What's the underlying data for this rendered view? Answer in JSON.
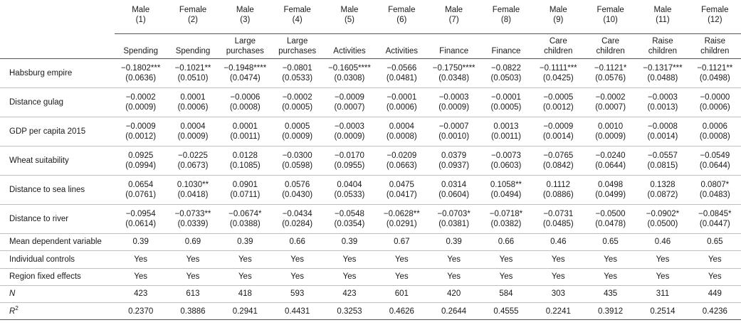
{
  "columns": [
    {
      "sex": "Male",
      "num": "(1)",
      "outcome": [
        "Spending"
      ]
    },
    {
      "sex": "Female",
      "num": "(2)",
      "outcome": [
        "Spending"
      ]
    },
    {
      "sex": "Male",
      "num": "(3)",
      "outcome": [
        "Large",
        "purchases"
      ]
    },
    {
      "sex": "Female",
      "num": "(4)",
      "outcome": [
        "Large",
        "purchases"
      ]
    },
    {
      "sex": "Male",
      "num": "(5)",
      "outcome": [
        "Activities"
      ]
    },
    {
      "sex": "Female",
      "num": "(6)",
      "outcome": [
        "Activities"
      ]
    },
    {
      "sex": "Male",
      "num": "(7)",
      "outcome": [
        "Finance"
      ]
    },
    {
      "sex": "Female",
      "num": "(8)",
      "outcome": [
        "Finance"
      ]
    },
    {
      "sex": "Male",
      "num": "(9)",
      "outcome": [
        "Care",
        "children"
      ]
    },
    {
      "sex": "Female",
      "num": "(10)",
      "outcome": [
        "Care",
        "children"
      ]
    },
    {
      "sex": "Male",
      "num": "(11)",
      "outcome": [
        "Raise",
        "children"
      ]
    },
    {
      "sex": "Female",
      "num": "(12)",
      "outcome": [
        "Raise",
        "children"
      ]
    }
  ],
  "coef_rows": [
    {
      "label": "Habsburg empire",
      "coef": [
        "−0.1802***",
        "−0.1021**",
        "−0.1948****",
        "−0.0801",
        "−0.1605****",
        "−0.0566",
        "−0.1750****",
        "−0.0822",
        "−0.1111***",
        "−0.1121*",
        "−0.1317***",
        "−0.1121**"
      ],
      "se": [
        "(0.0636)",
        "(0.0510)",
        "(0.0474)",
        "(0.0533)",
        "(0.0308)",
        "(0.0481)",
        "(0.0348)",
        "(0.0503)",
        "(0.0425)",
        "(0.0576)",
        "(0.0488)",
        "(0.0498)"
      ]
    },
    {
      "label": "Distance gulag",
      "coef": [
        "−0.0002",
        "0.0001",
        "−0.0006",
        "−0.0002",
        "−0.0009",
        "−0.0001",
        "−0.0003",
        "−0.0001",
        "−0.0005",
        "−0.0002",
        "−0.0003",
        "−0.0000"
      ],
      "se": [
        "(0.0009)",
        "(0.0006)",
        "(0.0008)",
        "(0.0005)",
        "(0.0007)",
        "(0.0006)",
        "(0.0009)",
        "(0.0005)",
        "(0.0012)",
        "(0.0007)",
        "(0.0013)",
        "(0.0006)"
      ]
    },
    {
      "label": "GDP per capita 2015",
      "coef": [
        "−0.0009",
        "0.0004",
        "0.0001",
        "0.0005",
        "−0.0003",
        "0.0004",
        "−0.0007",
        "0.0013",
        "−0.0009",
        "0.0010",
        "−0.0008",
        "0.0006"
      ],
      "se": [
        "(0.0012)",
        "(0.0009)",
        "(0.0011)",
        "(0.0009)",
        "(0.0009)",
        "(0.0008)",
        "(0.0010)",
        "(0.0011)",
        "(0.0014)",
        "(0.0009)",
        "(0.0014)",
        "(0.0008)"
      ]
    },
    {
      "label": "Wheat suitability",
      "coef": [
        "0.0925",
        "−0.0225",
        "0.0128",
        "−0.0300",
        "−0.0170",
        "−0.0209",
        "0.0379",
        "−0.0073",
        "−0.0765",
        "−0.0240",
        "−0.0557",
        "−0.0549"
      ],
      "se": [
        "(0.0994)",
        "(0.0673)",
        "(0.1085)",
        "(0.0598)",
        "(0.0955)",
        "(0.0663)",
        "(0.0937)",
        "(0.0603)",
        "(0.0842)",
        "(0.0644)",
        "(0.0815)",
        "(0.0644)"
      ]
    },
    {
      "label": "Distance to sea lines",
      "coef": [
        "0.0654",
        "0.1030**",
        "0.0901",
        "0.0576",
        "0.0404",
        "0.0475",
        "0.0314",
        "0.1058**",
        "0.1112",
        "0.0498",
        "0.1328",
        "0.0807*"
      ],
      "se": [
        "(0.0761)",
        "(0.0418)",
        "(0.0711)",
        "(0.0430)",
        "(0.0533)",
        "(0.0417)",
        "(0.0604)",
        "(0.0494)",
        "(0.0886)",
        "(0.0499)",
        "(0.0872)",
        "(0.0483)"
      ]
    },
    {
      "label": "Distance to river",
      "coef": [
        "−0.0954",
        "−0.0733**",
        "−0.0674*",
        "−0.0434",
        "−0.0548",
        "−0.0628**",
        "−0.0703*",
        "−0.0718*",
        "−0.0731",
        "−0.0500",
        "−0.0902*",
        "−0.0845*"
      ],
      "se": [
        "(0.0614)",
        "(0.0339)",
        "(0.0388)",
        "(0.0284)",
        "(0.0354)",
        "(0.0291)",
        "(0.0381)",
        "(0.0382)",
        "(0.0485)",
        "(0.0478)",
        "(0.0500)",
        "(0.0447)"
      ]
    }
  ],
  "stat_rows": [
    {
      "label": "Mean dependent variable",
      "values": [
        "0.39",
        "0.69",
        "0.39",
        "0.66",
        "0.39",
        "0.67",
        "0.39",
        "0.66",
        "0.46",
        "0.65",
        "0.46",
        "0.65"
      ]
    },
    {
      "label": "Individual controls",
      "values": [
        "Yes",
        "Yes",
        "Yes",
        "Yes",
        "Yes",
        "Yes",
        "Yes",
        "Yes",
        "Yes",
        "Yes",
        "Yes",
        "Yes"
      ]
    },
    {
      "label": "Region fixed effects",
      "values": [
        "Yes",
        "Yes",
        "Yes",
        "Yes",
        "Yes",
        "Yes",
        "Yes",
        "Yes",
        "Yes",
        "Yes",
        "Yes",
        "Yes"
      ]
    },
    {
      "label": "N",
      "italic": true,
      "values": [
        "423",
        "613",
        "418",
        "593",
        "423",
        "601",
        "420",
        "584",
        "303",
        "435",
        "311",
        "449"
      ]
    },
    {
      "label": "R",
      "sup": "2",
      "italic": true,
      "values": [
        "0.2370",
        "0.3886",
        "0.2941",
        "0.4431",
        "0.3253",
        "0.4626",
        "0.2644",
        "0.4555",
        "0.2241",
        "0.3912",
        "0.2514",
        "0.4236"
      ]
    }
  ]
}
